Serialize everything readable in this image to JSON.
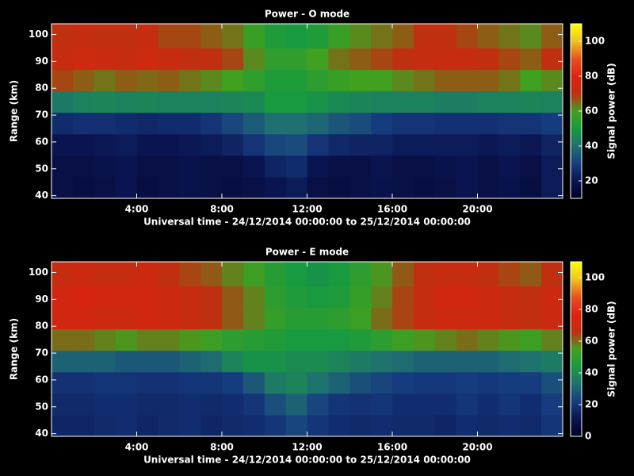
{
  "chart_data": [
    {
      "type": "heatmap",
      "title": "Power - O mode",
      "xlabel": "Universal time - 24/12/2014 00:00:00 to 25/12/2014 00:00:00",
      "ylabel": "Range (km)",
      "colorbar_label": "Signal power (dB)",
      "xlim": [
        0,
        24
      ],
      "xticks": [
        {
          "value": 4,
          "label": "4:00"
        },
        {
          "value": 8,
          "label": "8:00"
        },
        {
          "value": 12,
          "label": "12:00"
        },
        {
          "value": 16,
          "label": "16:00"
        },
        {
          "value": 20,
          "label": "20:00"
        }
      ],
      "ylim": [
        39,
        104
      ],
      "yticks": [
        40,
        50,
        60,
        70,
        80,
        90,
        100
      ],
      "clim": [
        10,
        110
      ],
      "cticks": [
        20,
        40,
        60,
        80,
        100
      ],
      "colormap": [
        "#000020",
        "#0a1450",
        "#163c80",
        "#1f7070",
        "#189a40",
        "#40a020",
        "#c03010",
        "#e02010",
        "#e85020",
        "#f0c020",
        "#ffff00"
      ],
      "x_edges": [
        0,
        1,
        2,
        3,
        4,
        5,
        6,
        7,
        8,
        9,
        10,
        11,
        12,
        13,
        14,
        15,
        16,
        17,
        18,
        19,
        20,
        21,
        22,
        23,
        24
      ],
      "y_edges": [
        39,
        47,
        55,
        63,
        71,
        79,
        87,
        95,
        104
      ],
      "z": [
        [
          18,
          17,
          18,
          20,
          17,
          18,
          19,
          18,
          17,
          18,
          20,
          22,
          18,
          17,
          18,
          19,
          18,
          17,
          18,
          20,
          18,
          19,
          17,
          22
        ],
        [
          18,
          18,
          19,
          20,
          18,
          18,
          19,
          18,
          18,
          20,
          24,
          26,
          20,
          18,
          18,
          20,
          18,
          18,
          19,
          20,
          18,
          20,
          18,
          22
        ],
        [
          20,
          20,
          21,
          22,
          20,
          20,
          21,
          22,
          24,
          28,
          32,
          33,
          28,
          25,
          24,
          24,
          22,
          22,
          22,
          22,
          21,
          22,
          21,
          24
        ],
        [
          26,
          27,
          27,
          26,
          25,
          26,
          26,
          28,
          32,
          36,
          40,
          40,
          38,
          35,
          33,
          30,
          28,
          28,
          27,
          27,
          27,
          28,
          28,
          30
        ],
        [
          42,
          44,
          45,
          44,
          45,
          44,
          44,
          44,
          45,
          46,
          50,
          50,
          48,
          46,
          45,
          44,
          44,
          44,
          43,
          43,
          44,
          44,
          45,
          44
        ],
        [
          68,
          66,
          64,
          66,
          65,
          66,
          64,
          62,
          60,
          56,
          52,
          52,
          55,
          58,
          60,
          60,
          62,
          64,
          66,
          66,
          66,
          64,
          60,
          62
        ],
        [
          72,
          74,
          73,
          72,
          74,
          72,
          70,
          70,
          68,
          62,
          56,
          56,
          60,
          64,
          66,
          68,
          70,
          72,
          72,
          72,
          70,
          68,
          66,
          70
        ],
        [
          70,
          72,
          70,
          70,
          72,
          68,
          68,
          66,
          64,
          58,
          52,
          50,
          52,
          58,
          62,
          64,
          66,
          70,
          70,
          68,
          66,
          64,
          62,
          66
        ]
      ]
    },
    {
      "type": "heatmap",
      "title": "Power - E mode",
      "xlabel": "Universal time - 24/12/2014 00:00:00 to 25/12/2014 00:00:00",
      "ylabel": "Range (km)",
      "colorbar_label": "Signal power (dB)",
      "xlim": [
        0,
        24
      ],
      "xticks": [
        {
          "value": 4,
          "label": "4:00"
        },
        {
          "value": 8,
          "label": "8:00"
        },
        {
          "value": 12,
          "label": "12:00"
        },
        {
          "value": 16,
          "label": "16:00"
        },
        {
          "value": 20,
          "label": "20:00"
        }
      ],
      "ylim": [
        39,
        104
      ],
      "yticks": [
        40,
        50,
        60,
        70,
        80,
        90,
        100
      ],
      "clim": [
        0,
        110
      ],
      "cticks": [
        0,
        20,
        40,
        60,
        80,
        100
      ],
      "colormap": [
        "#000020",
        "#0a1450",
        "#163c80",
        "#1f7070",
        "#189a40",
        "#40a020",
        "#c03010",
        "#e02010",
        "#e85020",
        "#f0c020",
        "#ffff00"
      ],
      "x_edges": [
        0,
        1,
        2,
        3,
        4,
        5,
        6,
        7,
        8,
        9,
        10,
        11,
        12,
        13,
        14,
        15,
        16,
        17,
        18,
        19,
        20,
        21,
        22,
        23,
        24
      ],
      "y_edges": [
        39,
        47,
        55,
        63,
        71,
        79,
        87,
        95,
        104
      ],
      "z": [
        [
          16,
          16,
          17,
          18,
          16,
          17,
          18,
          16,
          17,
          18,
          20,
          24,
          20,
          18,
          17,
          18,
          17,
          17,
          16,
          18,
          17,
          18,
          17,
          20
        ],
        [
          17,
          17,
          18,
          18,
          17,
          17,
          18,
          17,
          18,
          20,
          26,
          30,
          24,
          20,
          19,
          20,
          18,
          18,
          18,
          20,
          18,
          20,
          18,
          22
        ],
        [
          19,
          19,
          20,
          20,
          19,
          19,
          20,
          20,
          22,
          28,
          36,
          38,
          34,
          30,
          26,
          24,
          22,
          21,
          21,
          22,
          21,
          22,
          22,
          26
        ],
        [
          30,
          30,
          30,
          28,
          28,
          28,
          30,
          32,
          38,
          42,
          42,
          40,
          40,
          38,
          36,
          34,
          32,
          30,
          30,
          30,
          30,
          32,
          34,
          36
        ],
        [
          60,
          60,
          58,
          56,
          58,
          58,
          56,
          54,
          50,
          48,
          46,
          44,
          44,
          44,
          46,
          50,
          54,
          56,
          58,
          60,
          58,
          56,
          54,
          58
        ],
        [
          72,
          72,
          70,
          70,
          72,
          70,
          68,
          66,
          62,
          58,
          52,
          48,
          48,
          50,
          54,
          60,
          64,
          68,
          70,
          70,
          70,
          68,
          66,
          70
        ],
        [
          72,
          74,
          72,
          72,
          72,
          70,
          68,
          66,
          62,
          58,
          50,
          46,
          44,
          46,
          52,
          58,
          64,
          68,
          72,
          72,
          70,
          68,
          66,
          70
        ],
        [
          68,
          70,
          68,
          68,
          70,
          66,
          64,
          62,
          58,
          54,
          48,
          44,
          42,
          44,
          50,
          56,
          62,
          66,
          68,
          68,
          66,
          64,
          62,
          66
        ]
      ]
    }
  ]
}
